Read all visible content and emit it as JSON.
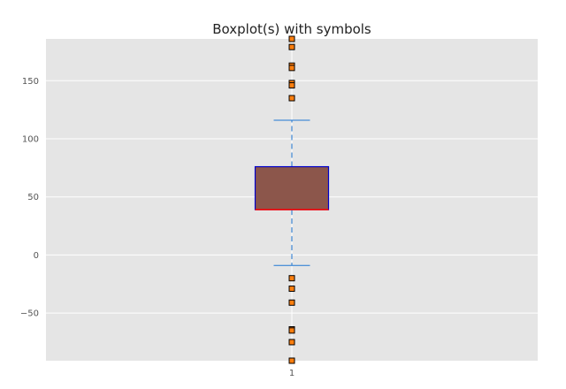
{
  "chart_data": {
    "type": "box",
    "title": "Boxplot(s) with symbols",
    "xlabel": "",
    "ylabel": "",
    "categories": [
      "1"
    ],
    "ylim": [
      -91,
      186
    ],
    "yticks": [
      -50,
      0,
      50,
      100,
      150
    ],
    "ytick_labels": [
      "−50",
      "0",
      "50",
      "100",
      "150"
    ],
    "grid": true,
    "boxes": [
      {
        "category": "1",
        "q1": 39,
        "median": 39,
        "q3": 76,
        "whisker_low": -9,
        "whisker_high": 116,
        "fliers": [
          186,
          179,
          163,
          161,
          148,
          146,
          135,
          -20,
          -29,
          -41,
          -64,
          -65,
          -75,
          -91
        ]
      }
    ],
    "colors": {
      "axes_background": "#e5e5e5",
      "grid": "#ffffff",
      "box_fill": "#8c564b",
      "box_edge": "#0000cc",
      "median": "#ff0000",
      "whisker": "#1f77d4",
      "cap": "#1f77d4",
      "flier_fill": "#ff7f0e",
      "flier_edge": "#000000"
    }
  }
}
